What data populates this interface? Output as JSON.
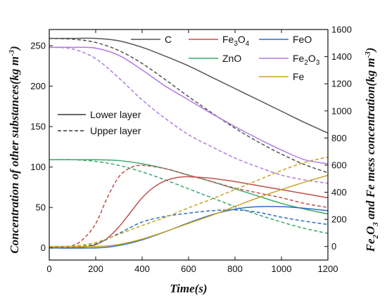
{
  "chart_data": {
    "type": "line",
    "xlabel": "Time(s)",
    "ylabel_left": "Concentration of other substances(kg m",
    "ylabel_left_sup": "-3",
    "ylabel_left_end": ")",
    "ylabel_right": "Fe",
    "ylabel_right_sub1": "2",
    "ylabel_right_mid": "O",
    "ylabel_right_sub2": "3",
    "ylabel_right_rest": " and Fe mess concentration(kg m",
    "ylabel_right_sup": "-3",
    "ylabel_right_end": ")",
    "xlim": [
      0,
      1200
    ],
    "ylim_left": [
      -15,
      270
    ],
    "ylim_right": [
      -100,
      1600
    ],
    "x_ticks": [
      "0",
      "200",
      "400",
      "600",
      "800",
      "1000",
      "1200"
    ],
    "y_left_ticks": [
      "0",
      "50",
      "100",
      "150",
      "200",
      "250"
    ],
    "y_right_ticks": [
      "0",
      "200",
      "400",
      "600",
      "800",
      "1000",
      "1200",
      "1400",
      "1600"
    ],
    "legend_series": [
      {
        "name": "C",
        "color": "#555555"
      },
      {
        "name": "Fe3O4",
        "base": "Fe",
        "sub1": "3",
        "mid": "O",
        "sub2": "4",
        "color": "#c0504d"
      },
      {
        "name": "FeO",
        "color": "#2e6fc0"
      },
      {
        "name": "ZnO",
        "color": "#3aa86b"
      },
      {
        "name": "Fe2O3",
        "base": "Fe",
        "sub1": "2",
        "mid": "O",
        "sub2": "3",
        "color": "#b07ae0"
      },
      {
        "name": "Fe",
        "color": "#c9a227"
      }
    ],
    "legend_layers": [
      {
        "name": "Lower layer",
        "style": "solid"
      },
      {
        "name": "Upper layer",
        "style": "dashed"
      }
    ],
    "series": [
      {
        "name": "C",
        "layer": "lower",
        "axis": "left",
        "color": "#555555",
        "x": [
          0,
          100,
          200,
          300,
          400,
          500,
          600,
          700,
          800,
          900,
          1000,
          1100,
          1200
        ],
        "y": [
          259,
          259,
          259,
          256,
          248,
          237,
          225,
          211,
          197,
          183,
          169,
          155,
          142
        ]
      },
      {
        "name": "C",
        "layer": "upper",
        "axis": "left",
        "color": "#555555",
        "x": [
          0,
          100,
          200,
          300,
          400,
          500,
          600,
          700,
          800,
          900,
          1000,
          1100,
          1200
        ],
        "y": [
          259,
          258,
          254,
          244,
          228,
          208,
          187,
          167,
          148,
          131,
          116,
          103,
          93
        ]
      },
      {
        "name": "Fe2O3",
        "layer": "lower",
        "axis": "left",
        "color": "#b07ae0",
        "x": [
          0,
          100,
          200,
          300,
          400,
          500,
          600,
          700,
          800,
          900,
          1000,
          1100,
          1200
        ],
        "y": [
          248,
          248,
          247,
          238,
          220,
          200,
          183,
          166,
          150,
          135,
          121,
          109,
          104
        ]
      },
      {
        "name": "Fe2O3",
        "layer": "upper",
        "axis": "left",
        "color": "#b07ae0",
        "x": [
          0,
          100,
          200,
          300,
          400,
          500,
          600,
          700,
          800,
          900,
          1000,
          1100,
          1200
        ],
        "y": [
          248,
          246,
          234,
          210,
          183,
          160,
          140,
          125,
          111,
          100,
          90,
          84,
          80
        ]
      },
      {
        "name": "ZnO",
        "layer": "lower",
        "axis": "left",
        "color": "#3aa86b",
        "x": [
          0,
          100,
          200,
          300,
          400,
          500,
          600,
          700,
          800,
          900,
          1000,
          1100,
          1200
        ],
        "y": [
          109,
          109,
          109,
          108,
          104,
          98,
          90,
          82,
          73,
          64,
          55,
          48,
          42
        ]
      },
      {
        "name": "ZnO",
        "layer": "upper",
        "axis": "left",
        "color": "#3aa86b",
        "x": [
          0,
          100,
          200,
          300,
          400,
          500,
          600,
          700,
          800,
          900,
          1000,
          1100,
          1200
        ],
        "y": [
          109,
          109,
          107,
          102,
          94,
          84,
          73,
          62,
          51,
          41,
          32,
          24,
          18
        ]
      },
      {
        "name": "Fe3O4",
        "layer": "lower",
        "axis": "left",
        "color": "#c0504d",
        "x": [
          0,
          100,
          150,
          200,
          250,
          300,
          350,
          400,
          450,
          500,
          550,
          600,
          700,
          800,
          900,
          1000,
          1100,
          1200
        ],
        "y": [
          0,
          0,
          1,
          4,
          12,
          26,
          44,
          62,
          75,
          83,
          87,
          88,
          86,
          82,
          77,
          72,
          67,
          62
        ]
      },
      {
        "name": "Fe3O4",
        "layer": "upper",
        "axis": "left",
        "color": "#c0504d",
        "x": [
          0,
          100,
          150,
          200,
          250,
          300,
          350,
          400,
          500,
          600,
          700,
          800,
          900,
          1000,
          1100,
          1200
        ],
        "y": [
          0,
          3,
          12,
          30,
          62,
          88,
          99,
          102,
          98,
          90,
          82,
          74,
          68,
          62,
          55,
          50
        ]
      },
      {
        "name": "FeO",
        "layer": "lower",
        "axis": "left",
        "color": "#2e6fc0",
        "x": [
          0,
          200,
          300,
          400,
          500,
          600,
          700,
          800,
          900,
          1000,
          1100,
          1200
        ],
        "y": [
          0,
          0,
          3,
          10,
          20,
          31,
          41,
          48,
          51,
          51,
          49,
          46
        ]
      },
      {
        "name": "FeO",
        "layer": "upper",
        "axis": "left",
        "color": "#2e6fc0",
        "x": [
          0,
          100,
          200,
          300,
          400,
          500,
          600,
          700,
          800,
          900,
          1000,
          1100,
          1200
        ],
        "y": [
          0,
          1,
          5,
          18,
          32,
          39,
          43,
          46,
          47,
          44,
          38,
          33,
          29
        ]
      },
      {
        "name": "Fe",
        "layer": "lower",
        "axis": "right",
        "color": "#c9a227",
        "x": [
          0,
          200,
          300,
          400,
          500,
          600,
          700,
          800,
          900,
          1000,
          1100,
          1200
        ],
        "y": [
          0,
          0,
          15,
          55,
          110,
          170,
          230,
          295,
          360,
          420,
          475,
          525
        ]
      },
      {
        "name": "Fe",
        "layer": "upper",
        "axis": "right",
        "color": "#c9a227",
        "x": [
          0,
          100,
          200,
          300,
          400,
          500,
          600,
          700,
          800,
          900,
          1000,
          1100,
          1200
        ],
        "y": [
          0,
          4,
          30,
          90,
          155,
          215,
          285,
          350,
          420,
          490,
          560,
          620,
          660
        ]
      }
    ]
  }
}
